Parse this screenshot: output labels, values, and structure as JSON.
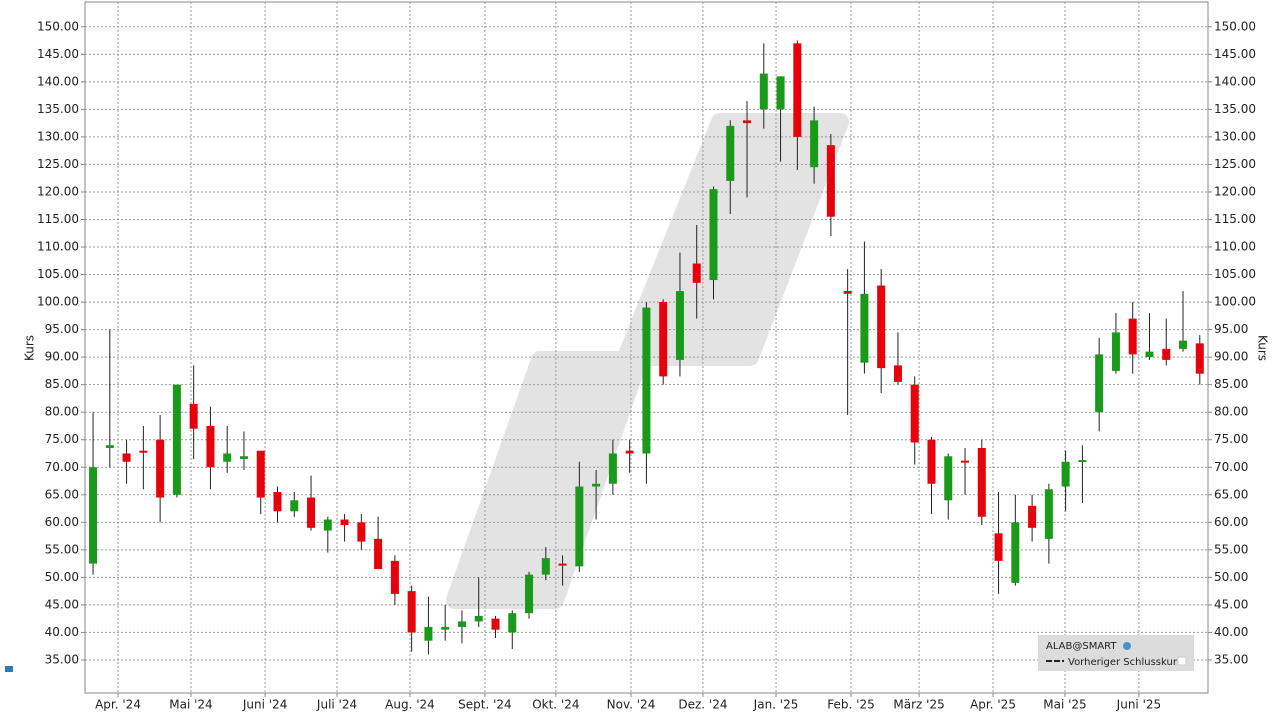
{
  "chart_data": {
    "type": "candlestick",
    "y_label": "Kurs",
    "ylim": [
      29,
      154.5
    ],
    "yticks": [
      {
        "value": 35,
        "label": "35.00"
      },
      {
        "value": 40,
        "label": "40.00"
      },
      {
        "value": 45,
        "label": "45.00"
      },
      {
        "value": 50,
        "label": "50.00"
      },
      {
        "value": 55,
        "label": "55.00"
      },
      {
        "value": 60,
        "label": "60.00"
      },
      {
        "value": 65,
        "label": "65.00"
      },
      {
        "value": 70,
        "label": "70.00"
      },
      {
        "value": 75,
        "label": "75.00"
      },
      {
        "value": 80,
        "label": "80.00"
      },
      {
        "value": 85,
        "label": "85.00"
      },
      {
        "value": 90,
        "label": "90.00"
      },
      {
        "value": 95,
        "label": "95.00"
      },
      {
        "value": 100,
        "label": "100.00"
      },
      {
        "value": 105,
        "label": "105.00"
      },
      {
        "value": 110,
        "label": "110.00"
      },
      {
        "value": 115,
        "label": "115.00"
      },
      {
        "value": 120,
        "label": "120.00"
      },
      {
        "value": 125,
        "label": "125.00"
      },
      {
        "value": 130,
        "label": "130.00"
      },
      {
        "value": 135,
        "label": "135.00"
      },
      {
        "value": 140,
        "label": "140.00"
      },
      {
        "value": 145,
        "label": "145.00"
      },
      {
        "value": 150,
        "label": "150.00"
      }
    ],
    "xlim": [
      -0.48,
      66.49
    ],
    "xticks": [
      {
        "value": 1.49,
        "label": "Apr. '24"
      },
      {
        "value": 5.84,
        "label": "Mai '24"
      },
      {
        "value": 10.26,
        "label": "Juni '24"
      },
      {
        "value": 14.55,
        "label": "Juli '24"
      },
      {
        "value": 18.9,
        "label": "Aug. '24"
      },
      {
        "value": 23.37,
        "label": "Sept. '24"
      },
      {
        "value": 27.6,
        "label": "Okt. '24"
      },
      {
        "value": 32.08,
        "label": "Nov. '24"
      },
      {
        "value": 36.37,
        "label": "Dez. '24"
      },
      {
        "value": 40.73,
        "label": "Jan. '25"
      },
      {
        "value": 45.2,
        "label": "Feb. '25"
      },
      {
        "value": 49.26,
        "label": "März '25"
      },
      {
        "value": 53.67,
        "label": "Apr. '25"
      },
      {
        "value": 57.96,
        "label": "Mai '25"
      },
      {
        "value": 62.37,
        "label": "Juni '25"
      }
    ],
    "grid": true,
    "up_color": "#1a9a1a",
    "down_color": "#e8000b",
    "legend": {
      "position": "lower right",
      "entries": [
        "ALAB@SMART",
        "Vorheriger Schlusskurs"
      ]
    },
    "series": [
      {
        "name": "ALAB@SMART",
        "open": [
          52.5,
          73.5,
          72.5,
          73,
          75,
          65,
          81.5,
          77.5,
          71,
          71.5,
          73,
          65.5,
          62,
          64.5,
          58.5,
          60.5,
          60,
          57,
          53,
          47.5,
          38.5,
          40.5,
          41,
          42,
          42.5,
          40,
          43.5,
          50.5,
          52.5,
          52,
          66.5,
          67,
          73,
          72.5,
          100,
          89.5,
          107,
          104,
          122,
          133,
          135,
          135,
          147,
          124.5,
          128.5,
          102,
          89,
          103,
          88.5,
          85,
          75,
          64,
          71.2,
          73.5,
          58,
          49,
          63,
          57,
          66.5,
          71,
          80,
          87.5,
          97,
          90,
          91.5,
          91.5,
          92.5
        ],
        "high": [
          80,
          95,
          75,
          77.5,
          79.5,
          85,
          88.5,
          81,
          77.5,
          76.5,
          73,
          66.5,
          65.5,
          68.5,
          61,
          61.5,
          61.5,
          61,
          54,
          48.5,
          46.5,
          45,
          44,
          50,
          43,
          44,
          51,
          55.5,
          54,
          71,
          69.5,
          75,
          75,
          100,
          100.5,
          109,
          114,
          121,
          133,
          136.5,
          147,
          141,
          147.5,
          135.5,
          130.5,
          106,
          111,
          106,
          94.5,
          86.5,
          75.5,
          72.5,
          73.5,
          75,
          65.5,
          65,
          65,
          67,
          73,
          74,
          93.5,
          98,
          100,
          98,
          97,
          102,
          94
        ],
        "low": [
          50.5,
          70,
          67,
          66,
          60,
          64.5,
          71.5,
          66,
          69,
          69.5,
          61.5,
          60,
          61,
          58.5,
          54.5,
          56.5,
          55,
          51.5,
          45,
          36.5,
          36,
          38.5,
          38,
          41,
          39,
          37,
          42.5,
          49.5,
          48.5,
          51,
          60.5,
          65,
          69,
          67,
          85,
          86.5,
          97,
          100.5,
          116,
          119,
          131.5,
          125.5,
          124,
          121.5,
          112,
          79.5,
          87,
          83.5,
          85,
          70.5,
          61.5,
          60.5,
          65,
          59.5,
          47,
          48.5,
          56.5,
          52.5,
          62,
          63.5,
          76.5,
          87,
          87,
          89.5,
          88.5,
          91,
          85
        ],
        "close": [
          70,
          74,
          71,
          72.8,
          64.5,
          85,
          77,
          70,
          72.5,
          72,
          64.5,
          62,
          64,
          59,
          60.5,
          59.5,
          56.5,
          51.5,
          47,
          40,
          41,
          41,
          42,
          43,
          40.5,
          43.5,
          50.5,
          53.5,
          52.4,
          66.5,
          67,
          72.5,
          72.5,
          99,
          86.5,
          102,
          103.5,
          120.5,
          132,
          132.5,
          141.5,
          141,
          130,
          133,
          115.5,
          101.5,
          101.5,
          88,
          85.5,
          74.5,
          67,
          72,
          71,
          61,
          53,
          60,
          59,
          66,
          71,
          71.3,
          90.5,
          94.5,
          90.5,
          91,
          89.5,
          93,
          87
        ]
      }
    ]
  }
}
